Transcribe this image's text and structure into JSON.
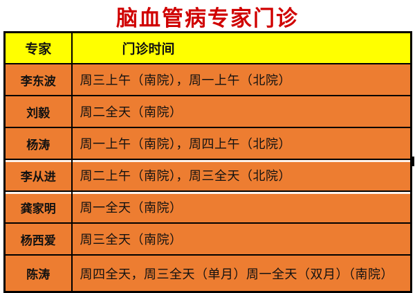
{
  "title": {
    "text": "脑血管病专家门诊",
    "color": "#d00000"
  },
  "table": {
    "header": {
      "expert_label": "专家",
      "time_label": "门诊时间"
    },
    "rows": [
      {
        "expert": "李东波",
        "schedule": "周三上午（南院），周一上午（北院）"
      },
      {
        "expert": "刘毅",
        "schedule": "周二全天（南院）"
      },
      {
        "expert": "杨涛",
        "schedule": "周一上午（南院），周四上午（北院）"
      },
      {
        "expert": "李从进",
        "schedule": "周二上午（南院），周三全天（北院）"
      },
      {
        "expert": "龚家明",
        "schedule": "周一全天（南院）"
      },
      {
        "expert": "杨西爱",
        "schedule": "周三全天（南院）"
      },
      {
        "expert": "陈涛",
        "schedule": "周四全天，周三全天（单月）周一全天（双月）（南院）"
      }
    ],
    "colors": {
      "header_bg": "#ffff00",
      "row_bg": "#ed7d31",
      "border": "#000000",
      "body_text": "#111111",
      "title_text": "#d00000"
    }
  }
}
